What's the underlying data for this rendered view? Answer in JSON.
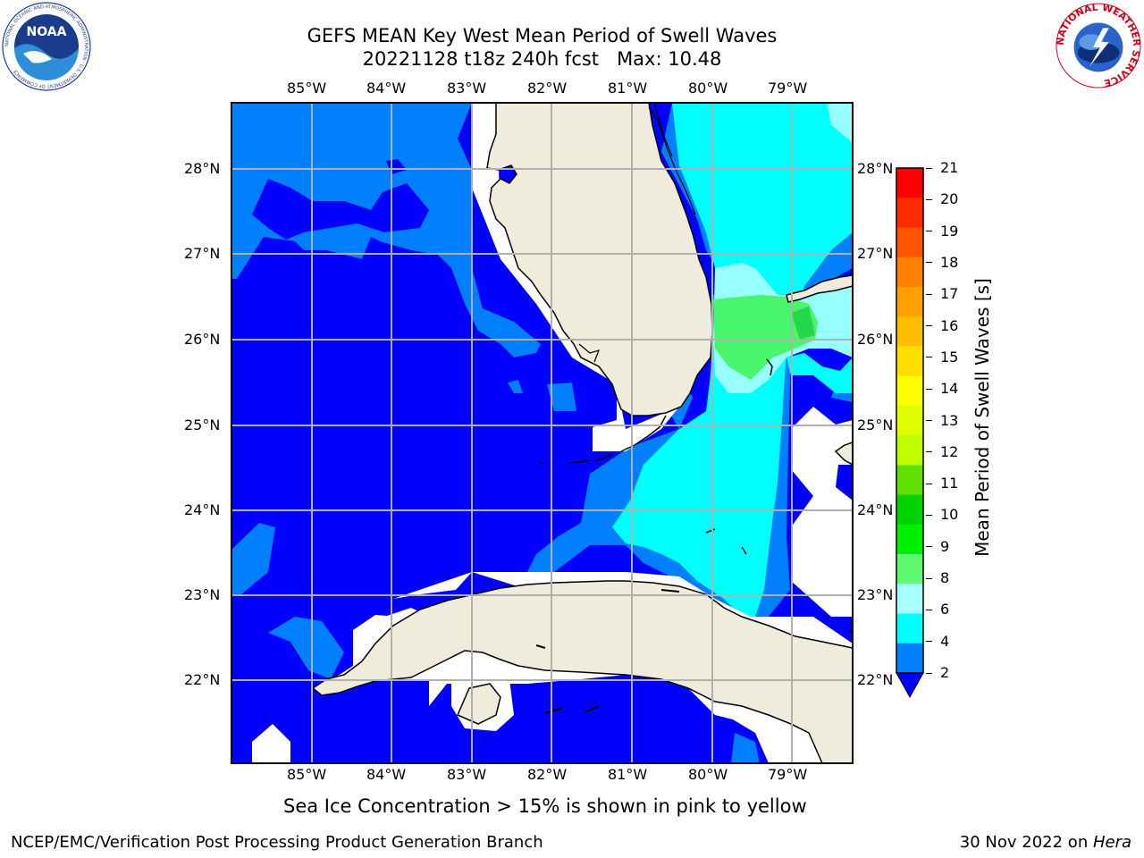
{
  "header": {
    "title_line1": "GEFS MEAN Key West Mean Period of Swell Waves",
    "title_line2": "20221128 t18z 240h fcst   Max: 10.48"
  },
  "logos": {
    "noaa_text": "NOAA",
    "noaa_ring_text": "NATIONAL OCEANIC AND ATMOSPHERIC ADMINISTRATION · U.S. DEPARTMENT OF COMMERCE",
    "nws_ring_text": "NATIONAL WEATHER SERVICE"
  },
  "map": {
    "lon_labels": [
      "85°W",
      "84°W",
      "83°W",
      "82°W",
      "81°W",
      "80°W",
      "79°W"
    ],
    "lat_labels": [
      "28°N",
      "27°N",
      "26°N",
      "25°N",
      "24°N",
      "23°N",
      "22°N"
    ],
    "colors": {
      "land": "#efecdc",
      "no_data": "#ffffff",
      "band_2_4": "#0000ff",
      "band_4_6": "#0080ff",
      "band_6_8": "#00ffff",
      "band_8_9": "#97ffff",
      "band_9_10": "#49f56a",
      "grid": "#b0b0b0"
    }
  },
  "colorbar": {
    "label": "Mean Period of Swell Waves [s]",
    "ticks": [
      "21",
      "20",
      "19",
      "18",
      "17",
      "16",
      "15",
      "14",
      "13",
      "12",
      "11",
      "10",
      "9",
      "8",
      "6",
      "4",
      "2"
    ],
    "colors_top_to_bottom": [
      "#ff0000",
      "#ff2a00",
      "#ff5500",
      "#ff7f00",
      "#ff9f00",
      "#ffbf00",
      "#ffdf00",
      "#ffff00",
      "#dfff00",
      "#bfff00",
      "#60e000",
      "#00d400",
      "#00f000",
      "#60f870",
      "#a8ffff",
      "#00ffff",
      "#0080ff"
    ],
    "extend_color": "#0000ff"
  },
  "caption": "Sea Ice Concentration > 15% is shown in pink to yellow",
  "footer": {
    "left": "NCEP/EMC/Verification Post Processing Product Generation Branch",
    "right_prefix": "30 Nov 2022 on ",
    "right_host": "Hera"
  }
}
